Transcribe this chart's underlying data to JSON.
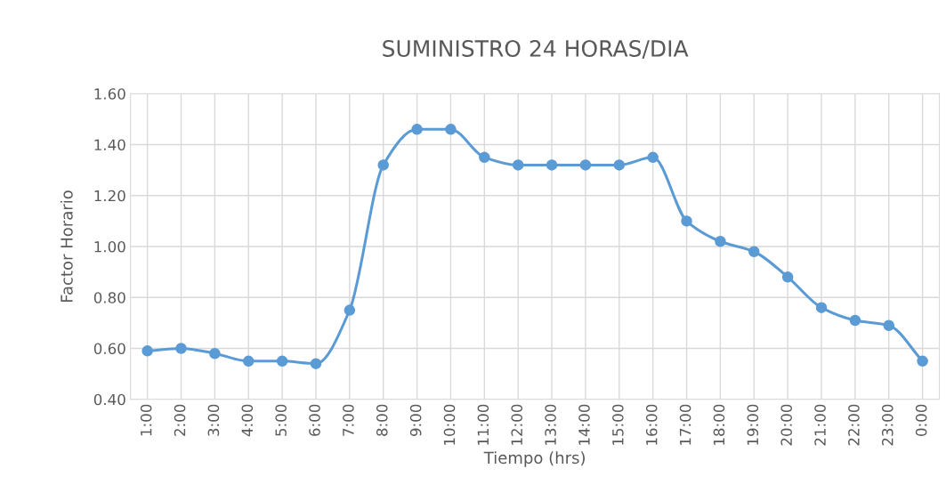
{
  "chart_data": {
    "type": "line",
    "title": "SUMINISTRO 24 HORAS/DIA",
    "xlabel": "Tiempo (hrs)",
    "ylabel": "Factor Horario",
    "categories": [
      "1:00",
      "2:00",
      "3:00",
      "4:00",
      "5:00",
      "6:00",
      "7:00",
      "8:00",
      "9:00",
      "10:00",
      "11:00",
      "12:00",
      "13:00",
      "14:00",
      "15:00",
      "16:00",
      "17:00",
      "18:00",
      "19:00",
      "20:00",
      "21:00",
      "22:00",
      "23:00",
      "0:00"
    ],
    "series": [
      {
        "color": "#5b9bd5",
        "values": [
          0.59,
          0.6,
          0.58,
          0.55,
          0.55,
          0.54,
          0.75,
          1.32,
          1.46,
          1.46,
          1.35,
          1.32,
          1.32,
          1.32,
          1.32,
          1.35,
          1.1,
          1.02,
          0.98,
          0.88,
          0.76,
          0.71,
          0.69,
          0.55
        ]
      }
    ],
    "ylim": [
      0.4,
      1.6
    ],
    "yticks": [
      {
        "value": 0.4,
        "label": "0.40"
      },
      {
        "value": 0.6,
        "label": "0.60"
      },
      {
        "value": 0.8,
        "label": "0.80"
      },
      {
        "value": 1.0,
        "label": "1.00"
      },
      {
        "value": 1.2,
        "label": "1.20"
      },
      {
        "value": 1.4,
        "label": "1.40"
      },
      {
        "value": 1.6,
        "label": "1.60"
      }
    ],
    "grid": true,
    "marker": "circle",
    "line_style": "solid"
  }
}
